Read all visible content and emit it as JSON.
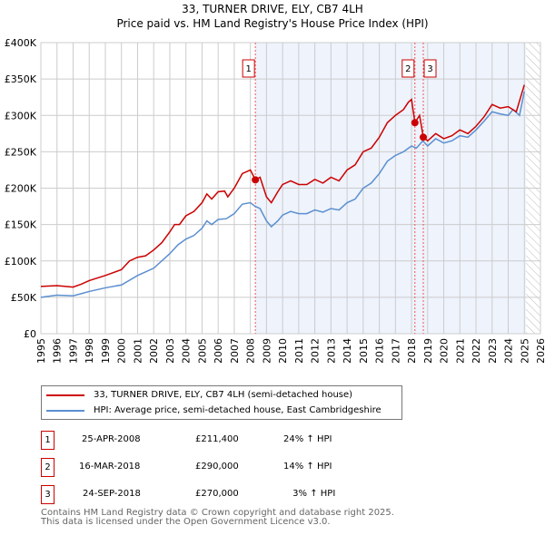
{
  "chart_data": {
    "type": "line",
    "title": "33, TURNER DRIVE, ELY, CB7 4LH",
    "subtitle": "Price paid vs. HM Land Registry's House Price Index (HPI)",
    "xlim": [
      1995,
      2026
    ],
    "ylim": [
      0,
      400000
    ],
    "yticks": [
      "£0",
      "£50K",
      "£100K",
      "£150K",
      "£200K",
      "£250K",
      "£300K",
      "£350K",
      "£400K"
    ],
    "xticks": [
      "1995",
      "1996",
      "1997",
      "1998",
      "1999",
      "2000",
      "2001",
      "2002",
      "2003",
      "2004",
      "2005",
      "2006",
      "2007",
      "2008",
      "2009",
      "2010",
      "2011",
      "2012",
      "2013",
      "2014",
      "2015",
      "2016",
      "2017",
      "2018",
      "2019",
      "2020",
      "2021",
      "2022",
      "2023",
      "2024",
      "2025",
      "2026"
    ],
    "grid": true,
    "colors": {
      "property": "#cc0000",
      "hpi": "#5b8fd0",
      "shade": "#eef3fc"
    },
    "series": [
      {
        "name": "33, TURNER DRIVE, ELY, CB7 4LH (semi-detached house)",
        "x": [
          1995,
          1996,
          1997,
          1997.5,
          1998,
          1999,
          2000,
          2000.5,
          2001,
          2001.5,
          2002,
          2002.5,
          2003,
          2003.3,
          2003.6,
          2004,
          2004.5,
          2005,
          2005.3,
          2005.6,
          2006,
          2006.4,
          2006.6,
          2007,
          2007.5,
          2008,
          2008.31,
          2008.6,
          2009,
          2009.3,
          2009.7,
          2010,
          2010.5,
          2011,
          2011.5,
          2012,
          2012.5,
          2013,
          2013.5,
          2014,
          2014.5,
          2015,
          2015.5,
          2016,
          2016.5,
          2017,
          2017.5,
          2017.8,
          2018.0,
          2018.21,
          2018.5,
          2018.73,
          2019,
          2019.5,
          2020,
          2020.5,
          2021,
          2021.5,
          2022,
          2022.5,
          2023,
          2023.5,
          2024,
          2024.5,
          2025
        ],
        "y": [
          65,
          66,
          64,
          68,
          73,
          80,
          88,
          100,
          105,
          107,
          115,
          125,
          140,
          150,
          150,
          162,
          168,
          180,
          192,
          185,
          195,
          196,
          188,
          200,
          220,
          225,
          211.4,
          215,
          188,
          180,
          195,
          205,
          210,
          205,
          205,
          212,
          207,
          215,
          210,
          225,
          232,
          250,
          255,
          270,
          290,
          300,
          308,
          318,
          322,
          290,
          300,
          270,
          265,
          275,
          268,
          272,
          280,
          275,
          285,
          298,
          315,
          310,
          312,
          305,
          342
        ]
      },
      {
        "name": "HPI: Average price, semi-detached house, East Cambridgeshire",
        "x": [
          1995,
          1996,
          1997,
          1997.5,
          1998,
          1999,
          2000,
          2001,
          2001.5,
          2002,
          2003,
          2003.5,
          2004,
          2004.5,
          2005,
          2005.3,
          2005.6,
          2006,
          2006.5,
          2007,
          2007.5,
          2008,
          2008.3,
          2008.6,
          2009,
          2009.3,
          2009.7,
          2010,
          2010.5,
          2011,
          2011.5,
          2012,
          2012.5,
          2013,
          2013.5,
          2014,
          2014.5,
          2015,
          2015.5,
          2016,
          2016.5,
          2017,
          2017.5,
          2018,
          2018.3,
          2018.7,
          2019,
          2019.5,
          2020,
          2020.5,
          2021,
          2021.5,
          2022,
          2022.5,
          2023,
          2023.5,
          2024,
          2024.3,
          2024.7,
          2025
        ],
        "y": [
          50,
          53,
          52,
          55,
          58,
          63,
          67,
          80,
          85,
          90,
          110,
          122,
          130,
          135,
          145,
          155,
          150,
          157,
          158,
          165,
          178,
          180,
          175,
          172,
          155,
          147,
          155,
          163,
          168,
          165,
          165,
          170,
          167,
          172,
          170,
          180,
          185,
          200,
          207,
          220,
          237,
          245,
          250,
          258,
          255,
          265,
          258,
          268,
          262,
          265,
          272,
          270,
          280,
          292,
          305,
          302,
          300,
          308,
          300,
          333
        ]
      }
    ],
    "annotations": [
      {
        "label": "1",
        "x": 2008.31,
        "y": 211.4
      },
      {
        "label": "2",
        "x": 2018.21,
        "y": 290
      },
      {
        "label": "3",
        "x": 2018.73,
        "y": 270
      }
    ],
    "y_unit": "£K"
  },
  "legend": {
    "property": "33, TURNER DRIVE, ELY, CB7 4LH (semi-detached house)",
    "hpi": "HPI: Average price, semi-detached house, East Cambridgeshire"
  },
  "sales": [
    {
      "n": "1",
      "date": "25-APR-2008",
      "price": "£211,400",
      "hpi": "24% ↑ HPI"
    },
    {
      "n": "2",
      "date": "16-MAR-2018",
      "price": "£290,000",
      "hpi": "14% ↑ HPI"
    },
    {
      "n": "3",
      "date": "24-SEP-2018",
      "price": "£270,000",
      "hpi": " 3% ↑ HPI"
    }
  ],
  "footer": {
    "line1": "Contains HM Land Registry data © Crown copyright and database right 2025.",
    "line2": "This data is licensed under the Open Government Licence v3.0."
  }
}
